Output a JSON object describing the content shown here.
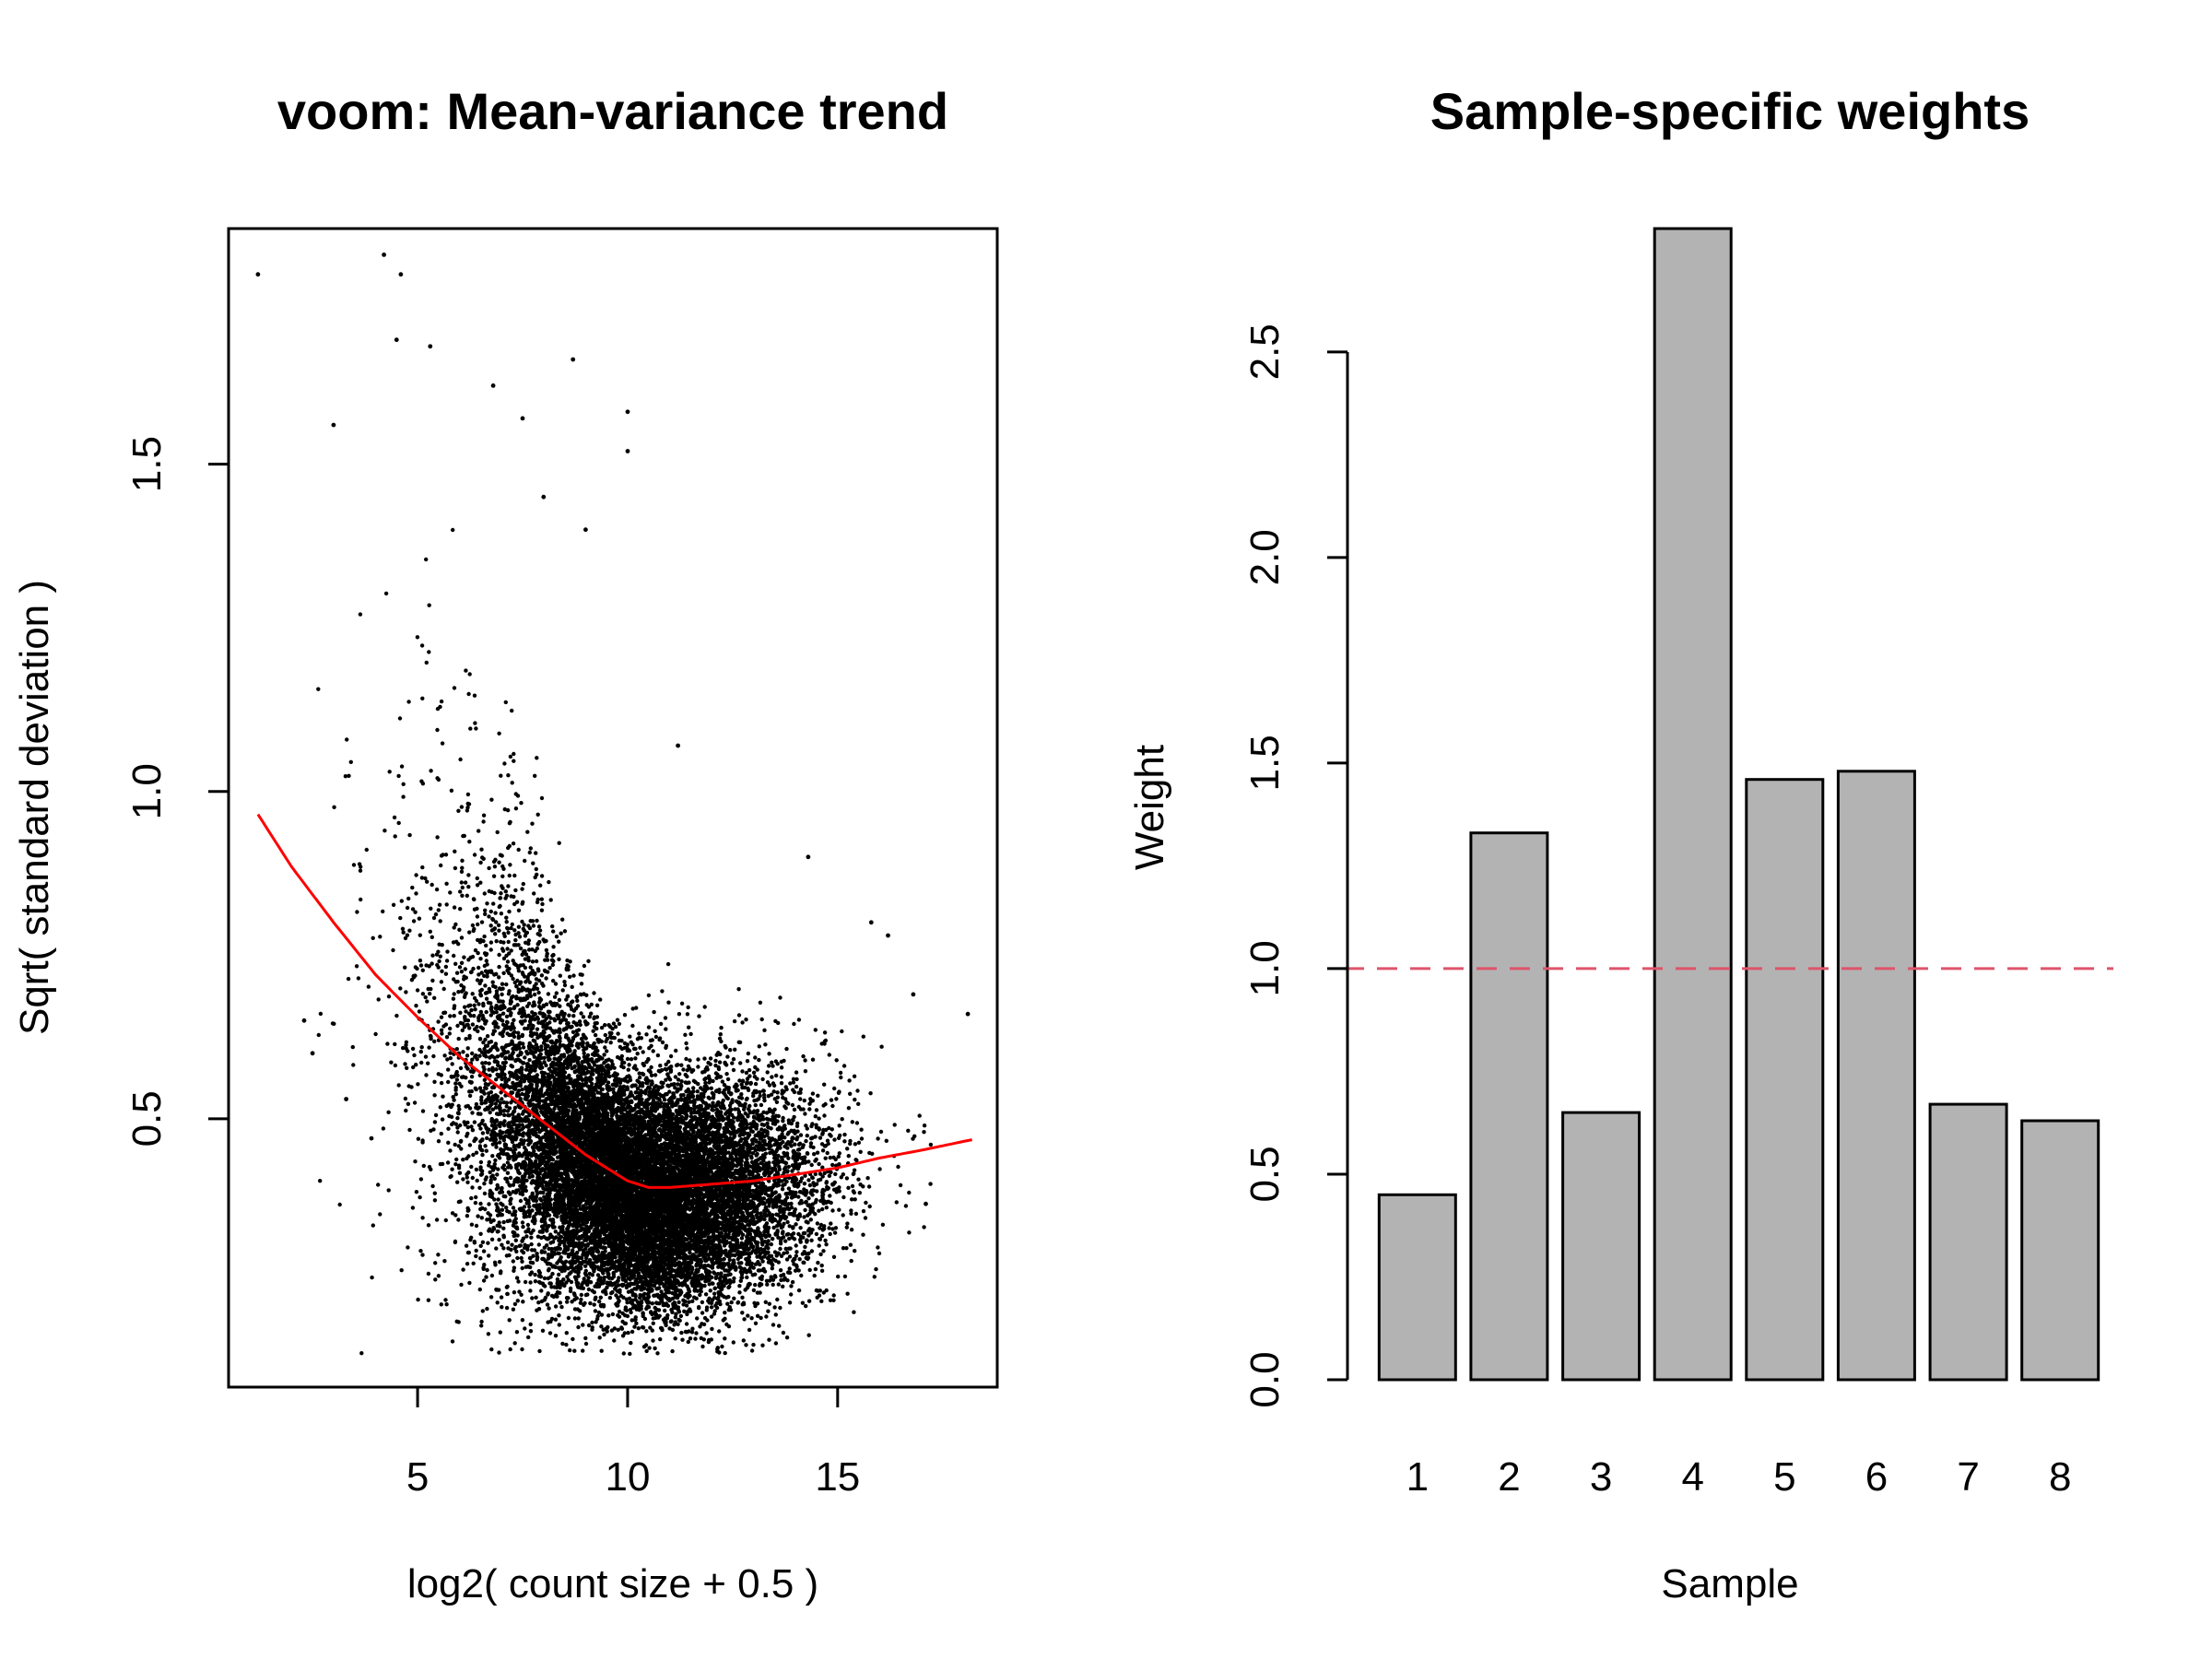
{
  "chart_data": [
    {
      "type": "scatter",
      "title": "voom: Mean-variance trend",
      "xlabel": "log2( count size + 0.5 )",
      "ylabel": "Sqrt( standard deviation )",
      "xlim": [
        0.5,
        18.8
      ],
      "ylim": [
        0.09,
        1.86
      ],
      "xticks": [
        "5",
        "10",
        "15"
      ],
      "xtick_values": [
        5,
        10,
        15
      ],
      "yticks": [
        "0.5",
        "1.0",
        "1.5"
      ],
      "ytick_values": [
        0.5,
        1.0,
        1.5
      ],
      "grid": false,
      "approx_point_count": 15000,
      "point_color": "#000000",
      "trend_color": "#ff0000",
      "trend_line": {
        "name": "",
        "x": [
          1.2,
          2,
          3,
          4,
          5,
          6,
          7,
          8,
          9,
          10,
          10.5,
          11,
          12,
          13,
          14,
          15,
          16,
          17,
          18.2
        ],
        "y": [
          0.965,
          0.885,
          0.8,
          0.72,
          0.655,
          0.595,
          0.545,
          0.495,
          0.445,
          0.405,
          0.395,
          0.395,
          0.4,
          0.405,
          0.415,
          0.425,
          0.44,
          0.452,
          0.468
        ]
      },
      "notable_points": {
        "x": [
          1.2,
          4.2,
          4.6,
          4.5,
          5.3,
          8.7,
          10.0,
          10.0,
          11.2,
          14.3,
          15.8,
          16.2,
          16.8,
          17.1,
          18.1,
          2.3,
          2.5,
          3.3,
          3.9,
          3.0,
          9.0,
          7.5,
          6.8,
          8.0
        ],
        "y": [
          1.79,
          1.82,
          1.79,
          1.69,
          1.68,
          1.66,
          1.58,
          1.52,
          1.07,
          0.9,
          0.8,
          0.78,
          0.69,
          0.37,
          0.66,
          0.65,
          0.6,
          0.53,
          0.47,
          1.56,
          1.4,
          1.57,
          1.62,
          1.45
        ]
      }
    },
    {
      "type": "bar",
      "title": "Sample-specific weights",
      "xlabel": "Sample",
      "ylabel": "Weight",
      "categories": [
        "1",
        "2",
        "3",
        "4",
        "5",
        "6",
        "7",
        "8"
      ],
      "values": [
        0.45,
        1.33,
        0.65,
        2.8,
        1.46,
        1.48,
        0.67,
        0.63
      ],
      "ylim": [
        0,
        2.8
      ],
      "yticks": [
        "0.0",
        "0.5",
        "1.0",
        "1.5",
        "2.0",
        "2.5"
      ],
      "ytick_values": [
        0,
        0.5,
        1.0,
        1.5,
        2.0,
        2.5
      ],
      "reference_line": 1.0,
      "reference_line_style": "dashed",
      "reference_line_color": "#df536b",
      "bar_color": "#b3b3b3",
      "bar_border_color": "#000000",
      "grid": false
    }
  ]
}
